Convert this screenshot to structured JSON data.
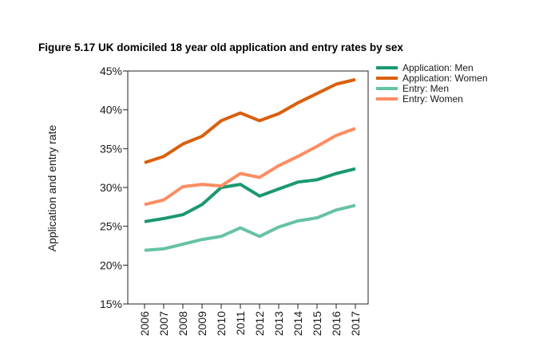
{
  "figure": {
    "title": "Figure 5.17 UK domiciled 18 year old application and entry rates by sex"
  },
  "chart_data": {
    "type": "line",
    "title": "Figure 5.17 UK domiciled 18 year old application and entry rates by sex",
    "xlabel": "",
    "ylabel": "Application and entry rate",
    "x": [
      "2006",
      "2007",
      "2008",
      "2009",
      "2010",
      "2011",
      "2012",
      "2013",
      "2014",
      "2015",
      "2016",
      "2017"
    ],
    "ylim": [
      15,
      45
    ],
    "yticks": [
      15,
      20,
      25,
      30,
      35,
      40,
      45
    ],
    "ytick_labels": [
      "15%",
      "20%",
      "25%",
      "30%",
      "35%",
      "40%",
      "45%"
    ],
    "grid": false,
    "legend_position": "top-right",
    "series": [
      {
        "name": "Application: Men",
        "color": "#1a9870",
        "values": [
          25.6,
          26.0,
          26.5,
          27.8,
          30.0,
          30.4,
          28.9,
          29.8,
          30.7,
          31.0,
          31.8,
          32.4
        ]
      },
      {
        "name": "Application: Women",
        "color": "#d95f0e",
        "values": [
          33.2,
          34.0,
          35.6,
          36.6,
          38.6,
          39.6,
          38.6,
          39.5,
          40.9,
          42.1,
          43.3,
          43.9
        ]
      },
      {
        "name": "Entry: Men",
        "color": "#66c2a4",
        "values": [
          21.9,
          22.1,
          22.7,
          23.3,
          23.7,
          24.8,
          23.7,
          24.9,
          25.7,
          26.1,
          27.1,
          27.7
        ]
      },
      {
        "name": "Entry: Women",
        "color": "#fc8d62",
        "values": [
          27.8,
          28.4,
          30.1,
          30.4,
          30.2,
          31.8,
          31.3,
          32.8,
          34.0,
          35.3,
          36.7,
          37.6
        ]
      }
    ]
  }
}
